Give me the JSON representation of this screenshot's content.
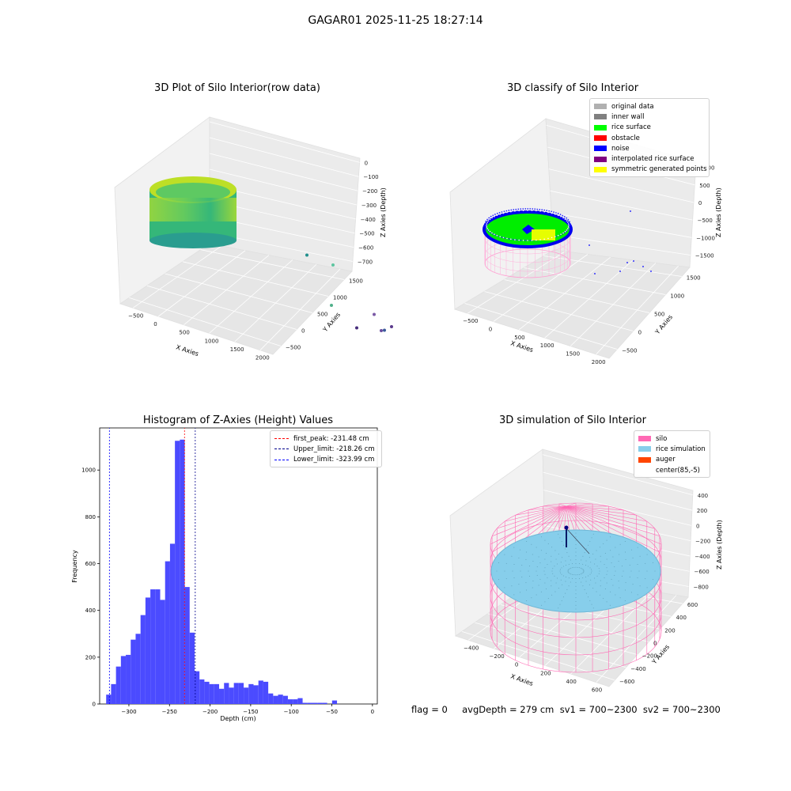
{
  "figure": {
    "suptitle": "GAGAR01 2025-11-25 18:27:14",
    "footer": "flag = 0     avgDepth = 279 cm  sv1 = 700~2300  sv2 = 700~2300"
  },
  "chart_data": [
    {
      "type": "scatter",
      "projection": "3d",
      "title": "3D Plot of Silo Interior(row data)",
      "xlabel": "X Axies",
      "ylabel": "Y Axies",
      "zlabel": "Z Axies (Depth)",
      "x_ticks": [
        "−500",
        "0",
        "500",
        "1000",
        "1500",
        "2000"
      ],
      "y_ticks": [
        "−500",
        "0",
        "500",
        "1000",
        "1500"
      ],
      "z_ticks": [
        "0",
        "−100",
        "−200",
        "−300",
        "−400",
        "−500",
        "−600",
        "−700"
      ],
      "colormap": "viridis",
      "grid": true,
      "series": [
        {
          "points": [
            [
              1700,
              900,
              -520
            ],
            [
              1850,
              1000,
              -560
            ],
            [
              1650,
              1100,
              -600
            ],
            [
              1550,
              800,
              -610
            ],
            [
              1900,
              800,
              -580
            ],
            [
              1300,
              700,
              -530
            ],
            [
              1200,
              400,
              -300
            ],
            [
              900,
              1300,
              -350
            ]
          ]
        }
      ]
    },
    {
      "type": "scatter",
      "projection": "3d",
      "title": "3D classify of Silo Interior",
      "xlabel": "X Axies",
      "ylabel": "Y Axies",
      "zlabel": "Z Axies (Depth)",
      "x_ticks": [
        "−500",
        "0",
        "500",
        "1000",
        "1500",
        "2000"
      ],
      "y_ticks": [
        "−500",
        "0",
        "500",
        "1000",
        "1500"
      ],
      "z_ticks": [
        "1000",
        "500",
        "0",
        "−500",
        "−1000",
        "−1500"
      ],
      "grid": true,
      "legend": {
        "placement": "top-right",
        "entries": [
          {
            "label": "original data",
            "color": "#b0b0b0"
          },
          {
            "label": "inner wall",
            "color": "#808080"
          },
          {
            "label": "rice surface",
            "color": "#00ff00"
          },
          {
            "label": "obstacle",
            "color": "#ff0000"
          },
          {
            "label": "noise",
            "color": "#0000ff"
          },
          {
            "label": "interpolated rice surface",
            "color": "#800080"
          },
          {
            "label": "symmetric generated points",
            "color": "#ffff00"
          }
        ]
      }
    },
    {
      "type": "bar",
      "title": "Histogram of Z-Axies (Height) Values",
      "xlabel": "Depth (cm)",
      "ylabel": "Frequency",
      "xlim": [
        -336,
        6
      ],
      "ylim": [
        0,
        1180
      ],
      "x_ticks": [
        -300,
        -250,
        -200,
        -150,
        -100,
        -50,
        0
      ],
      "y_ticks": [
        0,
        200,
        400,
        600,
        800,
        1000
      ],
      "bar_color": "#4b4bff",
      "bins": {
        "start": -328.0,
        "width": 6.05,
        "counts": [
          40,
          85,
          160,
          205,
          210,
          275,
          300,
          380,
          455,
          490,
          490,
          445,
          610,
          685,
          1125,
          1130,
          500,
          305,
          140,
          105,
          95,
          85,
          85,
          65,
          90,
          70,
          90,
          90,
          70,
          85,
          80,
          100,
          95,
          45,
          35,
          40,
          35,
          20,
          20,
          25,
          5,
          5,
          5,
          5,
          5,
          0,
          15
        ]
      },
      "lines": [
        {
          "label": "first_peak: -231.48 cm",
          "x": -231.48,
          "color": "#ff0000",
          "style": "dashed"
        },
        {
          "label": "Upper_limit: -218.26 cm",
          "x": -218.26,
          "color": "#00008b",
          "style": "dashed"
        },
        {
          "label": "Lower_limit: -323.99 cm",
          "x": -323.99,
          "color": "#0000ff",
          "style": "dashed"
        }
      ],
      "legend": {
        "placement": "top-right"
      }
    },
    {
      "type": "surface",
      "projection": "3d",
      "title": "3D simulation of Silo Interior",
      "xlabel": "X Axies",
      "ylabel": "Y Axies",
      "zlabel": "Z Axies (Depth)",
      "x_ticks": [
        "−400",
        "−200",
        "0",
        "200",
        "400",
        "600"
      ],
      "y_ticks": [
        "−600",
        "−400",
        "−200",
        "0",
        "200",
        "400",
        "600"
      ],
      "z_ticks": [
        "400",
        "200",
        "0",
        "−200",
        "−400",
        "−600",
        "−800"
      ],
      "grid": true,
      "legend": {
        "placement": "top-right",
        "entries": [
          {
            "label": "silo",
            "color": "#ff69b4"
          },
          {
            "label": "rice simulation",
            "color": "#87ceeb"
          },
          {
            "label": "auger",
            "color": "#ff4500"
          },
          {
            "label": "center(85,-5)",
            "color": ""
          }
        ]
      }
    }
  ]
}
